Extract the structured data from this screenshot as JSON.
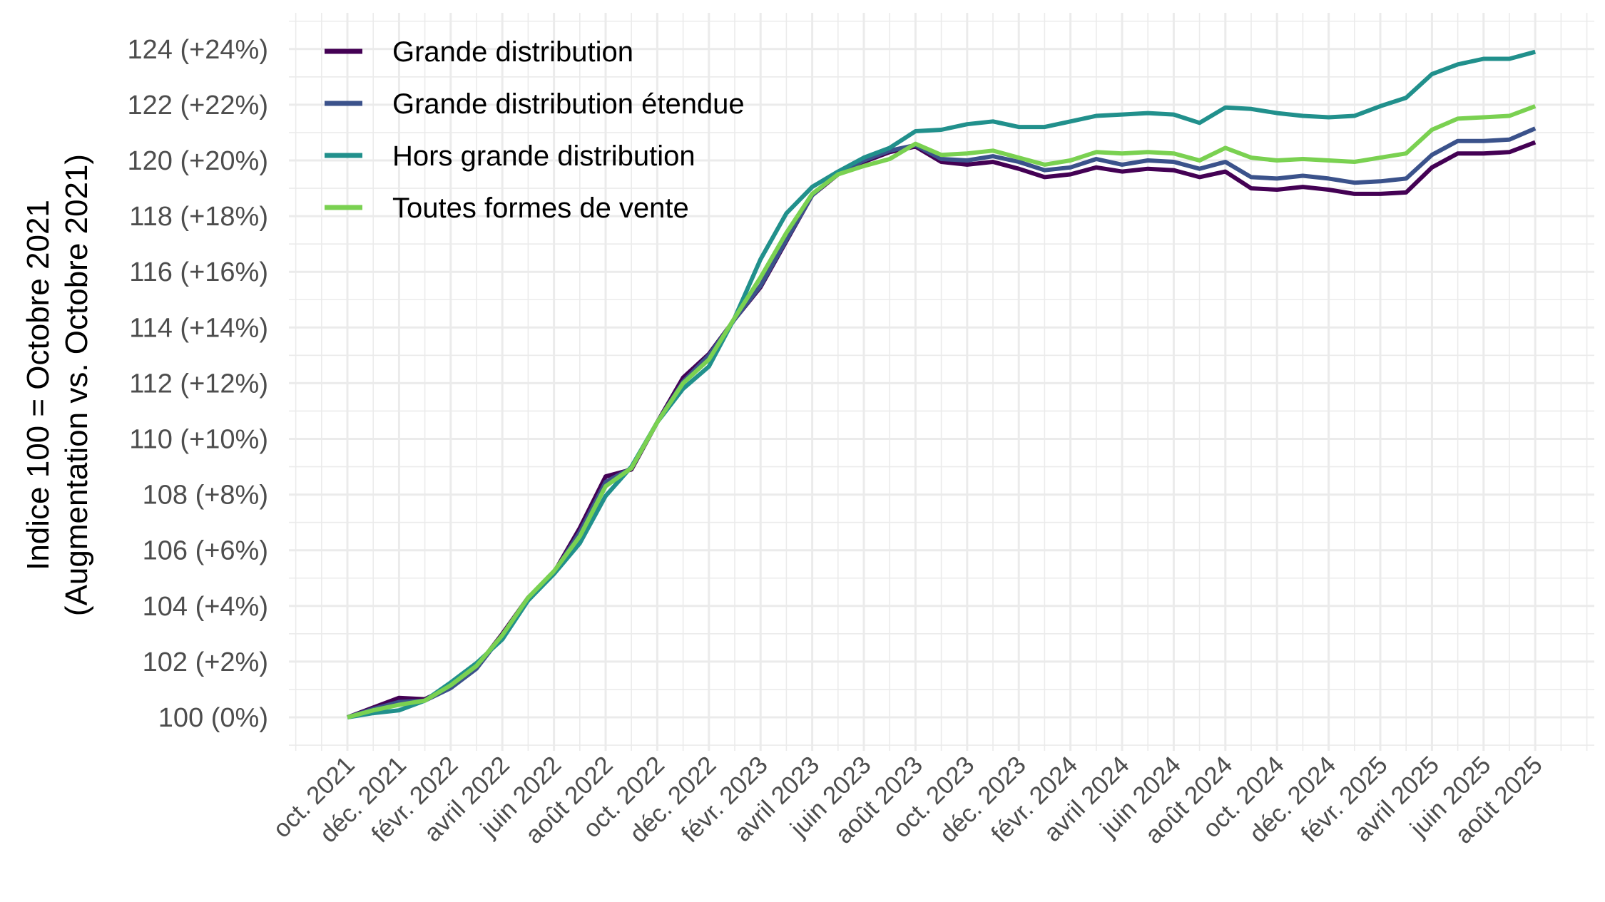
{
  "chart_data": {
    "type": "line",
    "title": "",
    "xlabel": "",
    "ylabel": {
      "line1": "Indice 100 = Octobre 2021",
      "line2": "(Augmentation vs. Octobre 2021)"
    },
    "ylim": [
      99.1,
      124.6
    ],
    "y_ticks": [
      {
        "value": 100,
        "label": "100 (0%)"
      },
      {
        "value": 102,
        "label": "102 (+2%)"
      },
      {
        "value": 104,
        "label": "104 (+4%)"
      },
      {
        "value": 106,
        "label": "106 (+6%)"
      },
      {
        "value": 108,
        "label": "108 (+8%)"
      },
      {
        "value": 110,
        "label": "110 (+10%)"
      },
      {
        "value": 112,
        "label": "112 (+12%)"
      },
      {
        "value": 114,
        "label": "114 (+14%)"
      },
      {
        "value": 116,
        "label": "116 (+16%)"
      },
      {
        "value": 118,
        "label": "118 (+18%)"
      },
      {
        "value": 120,
        "label": "120 (+20%)"
      },
      {
        "value": 122,
        "label": "122 (+22%)"
      },
      {
        "value": 124,
        "label": "124 (+24%)"
      }
    ],
    "x_ticks": [
      {
        "month": "2021-10",
        "label": "oct. 2021"
      },
      {
        "month": "2021-12",
        "label": "déc. 2021"
      },
      {
        "month": "2022-02",
        "label": "févr. 2022"
      },
      {
        "month": "2022-04",
        "label": "avril 2022"
      },
      {
        "month": "2022-06",
        "label": "juin 2022"
      },
      {
        "month": "2022-08",
        "label": "août 2022"
      },
      {
        "month": "2022-10",
        "label": "oct. 2022"
      },
      {
        "month": "2022-12",
        "label": "déc. 2022"
      },
      {
        "month": "2023-02",
        "label": "févr. 2023"
      },
      {
        "month": "2023-04",
        "label": "avril 2023"
      },
      {
        "month": "2023-06",
        "label": "juin 2023"
      },
      {
        "month": "2023-08",
        "label": "août 2023"
      },
      {
        "month": "2023-10",
        "label": "oct. 2023"
      },
      {
        "month": "2023-12",
        "label": "déc. 2023"
      },
      {
        "month": "2024-02",
        "label": "févr. 2024"
      },
      {
        "month": "2024-04",
        "label": "avril 2024"
      },
      {
        "month": "2024-06",
        "label": "juin 2024"
      },
      {
        "month": "2024-08",
        "label": "août 2024"
      },
      {
        "month": "2024-10",
        "label": "oct. 2024"
      },
      {
        "month": "2024-12",
        "label": "déc. 2024"
      },
      {
        "month": "2025-02",
        "label": "févr. 2025"
      },
      {
        "month": "2025-04",
        "label": "avril 2025"
      },
      {
        "month": "2025-06",
        "label": "juin 2025"
      },
      {
        "month": "2025-08",
        "label": "août 2025"
      }
    ],
    "x": [
      "2021-10",
      "2021-11",
      "2021-12",
      "2022-01",
      "2022-02",
      "2022-03",
      "2022-04",
      "2022-05",
      "2022-06",
      "2022-07",
      "2022-08",
      "2022-09",
      "2022-10",
      "2022-11",
      "2022-12",
      "2023-01",
      "2023-02",
      "2023-03",
      "2023-04",
      "2023-05",
      "2023-06",
      "2023-07",
      "2023-08",
      "2023-09",
      "2023-10",
      "2023-11",
      "2023-12",
      "2024-01",
      "2024-02",
      "2024-03",
      "2024-04",
      "2024-05",
      "2024-06",
      "2024-07",
      "2024-08",
      "2024-09",
      "2024-10",
      "2024-11",
      "2024-12",
      "2025-01",
      "2025-02",
      "2025-03",
      "2025-04",
      "2025-05",
      "2025-06",
      "2025-07",
      "2025-08"
    ],
    "grid": true,
    "legend_position": "top-left",
    "series": [
      {
        "name": "Grande distribution",
        "color": "#440154",
        "values": [
          100.0,
          100.35,
          100.7,
          100.65,
          101.1,
          101.8,
          103.0,
          104.3,
          105.2,
          106.8,
          108.65,
          108.9,
          110.6,
          112.2,
          113.05,
          114.3,
          115.45,
          117.1,
          118.75,
          119.5,
          119.95,
          120.3,
          120.5,
          119.95,
          119.85,
          119.95,
          119.7,
          119.4,
          119.5,
          119.75,
          119.6,
          119.7,
          119.65,
          119.4,
          119.6,
          119.0,
          118.95,
          119.05,
          118.95,
          118.8,
          118.8,
          118.85,
          119.75,
          120.25,
          120.25,
          120.3,
          120.65
        ]
      },
      {
        "name": "Grande distribution étendue",
        "color": "#3B528B",
        "values": [
          100.0,
          100.3,
          100.55,
          100.6,
          101.05,
          101.75,
          102.95,
          104.2,
          105.2,
          106.65,
          108.45,
          108.95,
          110.6,
          112.05,
          113.0,
          114.3,
          115.5,
          117.15,
          118.75,
          119.55,
          120.0,
          120.35,
          120.55,
          120.05,
          120.0,
          120.15,
          119.95,
          119.65,
          119.75,
          120.05,
          119.85,
          120.0,
          119.95,
          119.7,
          119.95,
          119.4,
          119.35,
          119.45,
          119.35,
          119.2,
          119.25,
          119.35,
          120.2,
          120.7,
          120.7,
          120.75,
          121.15
        ]
      },
      {
        "name": "Hors grande distribution",
        "color": "#21908C",
        "values": [
          100.0,
          100.15,
          100.25,
          100.6,
          101.25,
          101.95,
          102.8,
          104.2,
          105.15,
          106.25,
          107.95,
          109.0,
          110.6,
          111.8,
          112.6,
          114.35,
          116.45,
          118.1,
          119.05,
          119.6,
          120.1,
          120.45,
          121.05,
          121.1,
          121.3,
          121.4,
          121.2,
          121.2,
          121.4,
          121.6,
          121.65,
          121.7,
          121.65,
          121.35,
          121.9,
          121.85,
          121.7,
          121.6,
          121.55,
          121.6,
          121.95,
          122.25,
          123.1,
          123.45,
          123.65,
          123.65,
          123.9
        ]
      },
      {
        "name": "Toutes formes de vente",
        "color": "#7AD151",
        "values": [
          100.0,
          100.25,
          100.45,
          100.6,
          101.15,
          101.85,
          102.95,
          104.3,
          105.25,
          106.5,
          108.3,
          108.95,
          110.6,
          112.0,
          112.85,
          114.35,
          115.8,
          117.4,
          118.8,
          119.5,
          119.8,
          120.05,
          120.6,
          120.2,
          120.25,
          120.35,
          120.1,
          119.85,
          120.0,
          120.3,
          120.25,
          120.3,
          120.25,
          120.0,
          120.45,
          120.1,
          120.0,
          120.05,
          120.0,
          119.95,
          120.1,
          120.25,
          121.1,
          121.5,
          121.55,
          121.6,
          121.95
        ]
      }
    ]
  }
}
